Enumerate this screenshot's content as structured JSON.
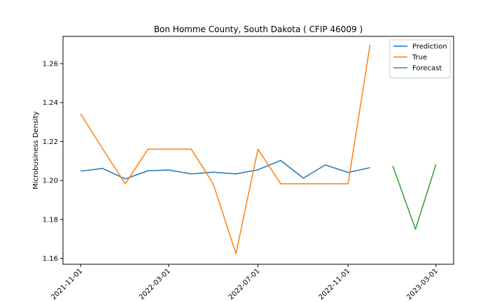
{
  "chart_data": {
    "type": "line",
    "title": "Bon Homme County, South Dakota ( CFIP 46009 )",
    "xlabel": "",
    "ylabel": "Microbusiness Density",
    "x_type": "date",
    "xlim": [
      "2021-10-08",
      "2023-03-25"
    ],
    "ylim": [
      1.157,
      1.274
    ],
    "x_ticks": [
      "2021-11-01",
      "2022-03-01",
      "2022-07-01",
      "2022-11-01",
      "2023-03-01"
    ],
    "y_ticks": [
      1.16,
      1.18,
      1.2,
      1.22,
      1.24,
      1.26
    ],
    "y_tick_labels": [
      "1.16",
      "1.18",
      "1.20",
      "1.22",
      "1.24",
      "1.26"
    ],
    "grid": false,
    "legend_position": "top-right",
    "series": [
      {
        "name": "Prediction",
        "color": "#1f77b4",
        "x": [
          "2021-11-01",
          "2021-12-01",
          "2022-01-01",
          "2022-02-01",
          "2022-03-01",
          "2022-04-01",
          "2022-05-01",
          "2022-06-01",
          "2022-07-01",
          "2022-08-01",
          "2022-09-01",
          "2022-10-01",
          "2022-11-01",
          "2022-12-01"
        ],
        "y": [
          1.2048,
          1.2062,
          1.2008,
          1.205,
          1.2054,
          1.2034,
          1.2043,
          1.2034,
          1.2055,
          1.2103,
          1.2012,
          1.208,
          1.2041,
          1.2066
        ]
      },
      {
        "name": "True",
        "color": "#ff7f0e",
        "x": [
          "2021-11-01",
          "2021-12-01",
          "2022-01-01",
          "2022-02-01",
          "2022-03-01",
          "2022-04-01",
          "2022-05-01",
          "2022-06-01",
          "2022-07-01",
          "2022-08-01",
          "2022-09-01",
          "2022-10-01",
          "2022-11-01",
          "2022-12-01"
        ],
        "y": [
          1.2342,
          1.2163,
          1.1983,
          1.2161,
          1.2161,
          1.2161,
          1.1983,
          1.1625,
          1.2161,
          1.1983,
          1.1983,
          1.1983,
          1.1983,
          1.2697
        ]
      },
      {
        "name": "Forecast",
        "color": "#2ca02c",
        "x": [
          "2023-01-01",
          "2023-02-01",
          "2023-03-01"
        ],
        "y": [
          1.2075,
          1.175,
          1.2083
        ]
      }
    ]
  }
}
